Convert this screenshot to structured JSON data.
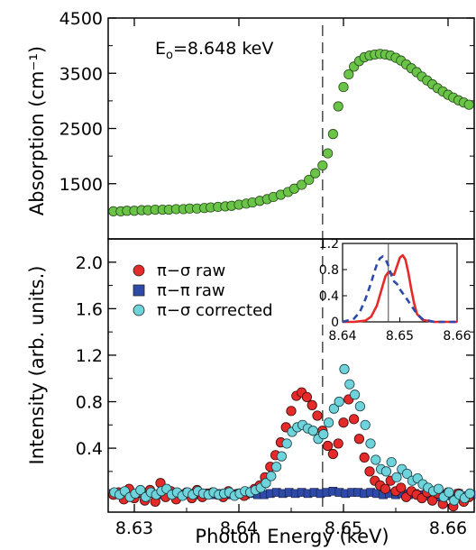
{
  "chart_data": [
    {
      "panel": "top",
      "type": "scatter",
      "ylabel": "Absorption (cm⁻¹)",
      "ylim": [
        500,
        4500
      ],
      "yticks": [
        1500,
        2500,
        3500,
        4500
      ],
      "xlim": [
        8.6275,
        8.6625
      ],
      "annotation": "E",
      "annotation_sub": "o",
      "annotation_rest": "=8.648  keV",
      "edge_energy": 8.648,
      "marker_color": "#69c447",
      "series": [
        {
          "x": [
            8.628,
            8.6287,
            8.6293,
            8.63,
            8.6307,
            8.6313,
            8.632,
            8.6327,
            8.6333,
            8.634,
            8.6347,
            8.6353,
            8.636,
            8.6367,
            8.6373,
            8.638,
            8.6387,
            8.6393,
            8.64,
            8.6407,
            8.6413,
            8.642,
            8.6427,
            8.6433,
            8.644,
            8.6447,
            8.6453,
            8.646,
            8.6467,
            8.6473,
            8.648,
            8.6485,
            8.649,
            8.6495,
            8.65,
            8.6505,
            8.651,
            8.6515,
            8.652,
            8.6525,
            8.653,
            8.6535,
            8.654,
            8.6545,
            8.655,
            8.6555,
            8.656,
            8.6565,
            8.657,
            8.6575,
            8.658,
            8.6585,
            8.659,
            8.6595,
            8.66,
            8.6605,
            8.661,
            8.6615,
            8.662
          ],
          "y": [
            1000,
            1000,
            1010,
            1010,
            1020,
            1020,
            1030,
            1030,
            1030,
            1040,
            1040,
            1050,
            1050,
            1060,
            1070,
            1080,
            1090,
            1100,
            1120,
            1140,
            1160,
            1190,
            1220,
            1260,
            1300,
            1350,
            1410,
            1480,
            1570,
            1690,
            1830,
            2050,
            2400,
            2900,
            3250,
            3480,
            3620,
            3720,
            3790,
            3820,
            3840,
            3850,
            3840,
            3820,
            3780,
            3730,
            3660,
            3590,
            3520,
            3440,
            3370,
            3300,
            3230,
            3170,
            3110,
            3060,
            3010,
            2970,
            2930
          ]
        }
      ]
    },
    {
      "panel": "bottom",
      "type": "scatter",
      "xlabel": "Photon  Energy  (keV)",
      "ylabel": "Intensity  (arb. units.)",
      "ylim": [
        -0.15,
        2.2
      ],
      "yticks": [
        0.4,
        0.8,
        1.2,
        1.6,
        2.0
      ],
      "xlim": [
        8.6275,
        8.6625
      ],
      "xticks": [
        8.63,
        8.64,
        8.65,
        8.66
      ],
      "edge_energy": 8.648,
      "legend_position": "top-left",
      "series": [
        {
          "name": "π−σ  raw",
          "color": "#e52a2a",
          "marker": "circle",
          "x": [
            8.628,
            8.6285,
            8.629,
            8.6295,
            8.63,
            8.6305,
            8.631,
            8.6315,
            8.632,
            8.6325,
            8.633,
            8.6335,
            8.634,
            8.6345,
            8.635,
            8.6355,
            8.636,
            8.6365,
            8.637,
            8.6375,
            8.638,
            8.6385,
            8.639,
            8.6395,
            8.64,
            8.6405,
            8.641,
            8.6415,
            8.642,
            8.6425,
            8.643,
            8.6435,
            8.644,
            8.6445,
            8.645,
            8.6455,
            8.646,
            8.6465,
            8.647,
            8.6475,
            8.648,
            8.6485,
            8.649,
            8.6495,
            8.65,
            8.6505,
            8.651,
            8.6515,
            8.652,
            8.6525,
            8.653,
            8.6535,
            8.654,
            8.6545,
            8.655,
            8.6555,
            8.656,
            8.6565,
            8.657,
            8.6575,
            8.658,
            8.6585,
            8.659,
            8.6595,
            8.66,
            8.6605,
            8.661,
            8.6615,
            8.662
          ],
          "y": [
            0.0,
            0.02,
            -0.04,
            0.05,
            -0.03,
            0.02,
            -0.05,
            0.04,
            -0.06,
            0.1,
            -0.02,
            0.03,
            -0.04,
            0.0,
            0.02,
            -0.03,
            0.04,
            -0.02,
            0.01,
            0.02,
            0.0,
            -0.02,
            0.03,
            0.0,
            0.01,
            -0.01,
            0.02,
            0.05,
            0.08,
            0.15,
            0.24,
            0.34,
            0.45,
            0.58,
            0.72,
            0.85,
            0.88,
            0.84,
            0.77,
            0.68,
            0.55,
            0.42,
            0.35,
            0.44,
            0.62,
            0.82,
            0.65,
            0.48,
            0.32,
            0.2,
            0.12,
            0.08,
            0.05,
            0.12,
            0.03,
            0.06,
            -0.02,
            0.03,
            0.0,
            -0.03,
            0.02,
            -0.05,
            0.01,
            -0.08,
            0.02,
            -0.1,
            0.01,
            -0.06,
            -0.02
          ]
        },
        {
          "name": "π−π  raw",
          "color": "#2e4aa8",
          "marker": "square",
          "x": [
            8.628,
            8.6286,
            8.6292,
            8.6298,
            8.6304,
            8.631,
            8.6316,
            8.6322,
            8.6328,
            8.6334,
            8.634,
            8.6346,
            8.6352,
            8.6358,
            8.6364,
            8.637,
            8.6376,
            8.6382,
            8.6388,
            8.6394,
            8.64,
            8.6406,
            8.6412,
            8.6418,
            8.6424,
            8.643,
            8.6436,
            8.6442,
            8.6448,
            8.6454,
            8.646,
            8.6466,
            8.6472,
            8.6478,
            8.6484,
            8.649,
            8.6496,
            8.6502,
            8.6508,
            8.6514,
            8.652,
            8.6526,
            8.6532,
            8.6538,
            8.6544,
            8.655,
            8.6556,
            8.6562,
            8.6568,
            8.6574,
            8.658,
            8.6586,
            8.6592,
            8.6598,
            8.6604,
            8.661,
            8.6616,
            8.6622
          ],
          "y": [
            0.01,
            0.0,
            0.02,
            0.0,
            0.01,
            -0.01,
            0.01,
            0.0,
            0.0,
            0.01,
            -0.01,
            0.0,
            0.01,
            0.0,
            0.01,
            0.0,
            0.0,
            0.01,
            0.0,
            0.0,
            0.01,
            0.0,
            0.01,
            0.0,
            0.0,
            0.01,
            0.02,
            0.01,
            0.02,
            0.01,
            0.02,
            0.01,
            0.02,
            0.01,
            0.02,
            0.03,
            0.02,
            0.01,
            0.02,
            0.02,
            0.01,
            0.02,
            0.01,
            0.0,
            0.01,
            0.0,
            0.01,
            0.0,
            0.01,
            0.0,
            -0.01,
            0.01,
            -0.02,
            0.0,
            -0.01,
            0.01,
            -0.01,
            0.0
          ]
        },
        {
          "name": "π−σ  corrected",
          "color": "#6fd3dc",
          "marker": "circle",
          "x": [
            8.628,
            8.6285,
            8.629,
            8.6295,
            8.63,
            8.6305,
            8.631,
            8.6315,
            8.632,
            8.6325,
            8.633,
            8.6335,
            8.634,
            8.6345,
            8.635,
            8.6355,
            8.636,
            8.6365,
            8.637,
            8.6375,
            8.638,
            8.6385,
            8.639,
            8.6395,
            8.64,
            8.6405,
            8.641,
            8.6415,
            8.642,
            8.6425,
            8.643,
            8.6435,
            8.644,
            8.6445,
            8.645,
            8.6455,
            8.646,
            8.6465,
            8.647,
            8.6475,
            8.648,
            8.6485,
            8.649,
            8.6495,
            8.65,
            8.6505,
            8.651,
            8.6515,
            8.652,
            8.6525,
            8.653,
            8.6535,
            8.654,
            8.6545,
            8.655,
            8.6555,
            8.656,
            8.6565,
            8.657,
            8.6575,
            8.658,
            8.6585,
            8.659,
            8.6595,
            8.66,
            8.6605,
            8.661,
            8.6615,
            8.662
          ],
          "y": [
            0.02,
            0.0,
            0.03,
            -0.02,
            0.01,
            0.04,
            -0.02,
            0.02,
            0.0,
            0.03,
            0.05,
            0.0,
            0.02,
            -0.01,
            0.02,
            0.0,
            0.03,
            0.01,
            0.0,
            0.02,
            0.0,
            0.01,
            0.02,
            -0.01,
            0.01,
            0.03,
            0.02,
            0.04,
            0.06,
            0.1,
            0.16,
            0.24,
            0.33,
            0.44,
            0.54,
            0.58,
            0.6,
            0.57,
            0.55,
            0.48,
            0.52,
            0.62,
            0.74,
            0.8,
            1.08,
            0.95,
            0.86,
            0.76,
            0.6,
            0.44,
            0.3,
            0.22,
            0.2,
            0.28,
            0.15,
            0.22,
            0.18,
            0.12,
            0.14,
            0.09,
            0.06,
            0.03,
            0.05,
            -0.02,
            0.02,
            -0.05,
            0.0,
            -0.03,
            0.01
          ]
        }
      ]
    },
    {
      "panel": "inset",
      "type": "line",
      "xlim": [
        8.64,
        8.66
      ],
      "ylim": [
        0,
        1.2
      ],
      "xticks": [
        8.64,
        8.65,
        8.66
      ],
      "yticks": [
        0,
        0.4,
        0.8,
        1.2
      ],
      "edge_energy": 8.648,
      "series": [
        {
          "color": "#e52a2a",
          "style": "solid",
          "x": [
            8.64,
            8.642,
            8.644,
            8.645,
            8.646,
            8.647,
            8.6475,
            8.648,
            8.6485,
            8.649,
            8.6495,
            8.65,
            8.6505,
            8.651,
            8.6515,
            8.652,
            8.6525,
            8.653,
            8.654,
            8.656,
            8.658,
            8.66
          ],
          "y": [
            0.0,
            0.0,
            0.02,
            0.08,
            0.25,
            0.55,
            0.7,
            0.76,
            0.74,
            0.72,
            0.85,
            0.98,
            1.02,
            0.95,
            0.75,
            0.5,
            0.28,
            0.12,
            0.03,
            0.0,
            0.0,
            0.0
          ]
        },
        {
          "color": "#2e4aa8",
          "style": "dashed",
          "x": [
            8.64,
            8.642,
            8.643,
            8.644,
            8.645,
            8.6455,
            8.646,
            8.6465,
            8.647,
            8.6475,
            8.648,
            8.6485,
            8.649,
            8.6495,
            8.65,
            8.651,
            8.652,
            8.653,
            8.654,
            8.656,
            8.658,
            8.66
          ],
          "y": [
            0.0,
            0.05,
            0.15,
            0.35,
            0.6,
            0.75,
            0.88,
            0.97,
            1.0,
            0.96,
            0.86,
            0.72,
            0.62,
            0.58,
            0.5,
            0.38,
            0.25,
            0.12,
            0.04,
            0.0,
            0.0,
            0.0
          ]
        }
      ]
    }
  ]
}
